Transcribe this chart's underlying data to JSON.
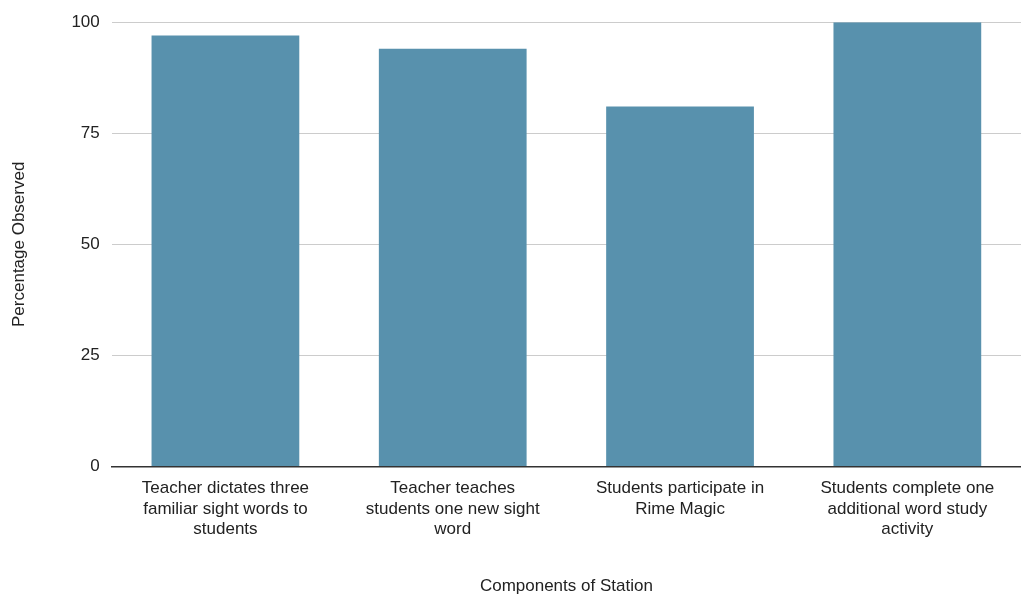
{
  "chart_data": {
    "type": "bar",
    "xlabel": "Components of Station",
    "ylabel": "Percentage Observed",
    "categories": [
      "Teacher dictates three familiar sight words to students",
      "Teacher teaches students one new sight word",
      "Students participate in Rime Magic",
      "Students complete one additional word study activity"
    ],
    "values": [
      97,
      94,
      81,
      100
    ],
    "color": "#5891ad",
    "ylim": [
      0,
      100
    ],
    "yticks": [
      0,
      25,
      50,
      75,
      100
    ],
    "grid": "y",
    "legend": false
  }
}
